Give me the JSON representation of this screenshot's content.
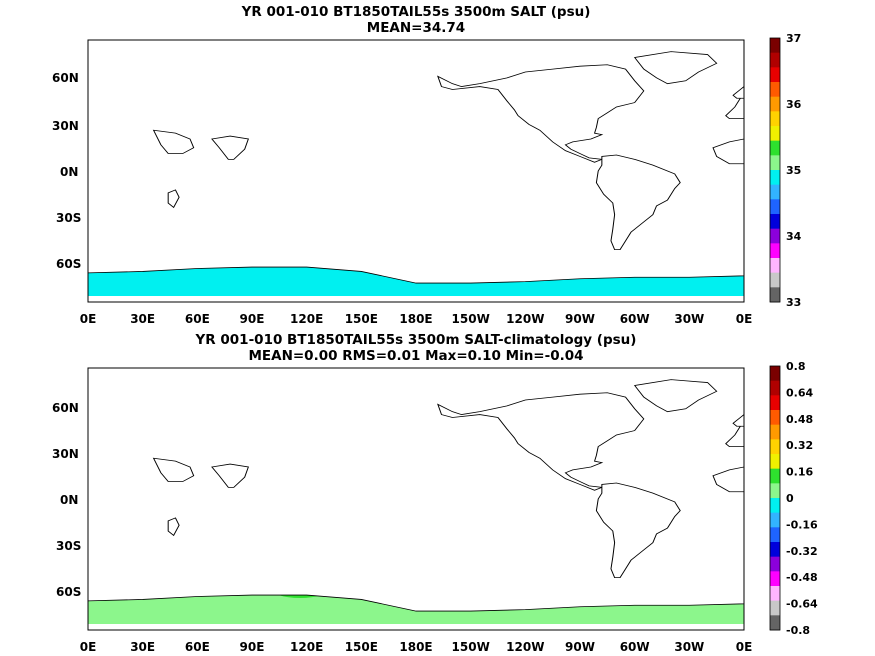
{
  "panels": [
    {
      "title_line1": "YR 001-010 BT1850TAIL55s 3500m SALT (psu)",
      "title_line2": "MEAN=34.74",
      "colorbar_labels": [
        "37",
        "36",
        "35",
        "34",
        "33"
      ],
      "colorbar_colors": [
        "#7a0000",
        "#b00000",
        "#e80000",
        "#ff5a00",
        "#ff9a00",
        "#ffd200",
        "#f0f000",
        "#2ee02e",
        "#8cf68c",
        "#00f0f0",
        "#32b4ff",
        "#1e64ff",
        "#0000dc",
        "#8c00dc",
        "#ff00ff",
        "#ffb4ff",
        "#c8c8c8",
        "#646464"
      ],
      "fill_main": "#00f0f0",
      "fill_atlantic": "#8cf68c"
    },
    {
      "title_line1": "YR 001-010 BT1850TAIL55s 3500m SALT-climatology (psu)",
      "title_line2": "MEAN=0.00   RMS=0.01   Max=0.10   Min=-0.04",
      "colorbar_labels": [
        "0.8",
        "0.64",
        "0.48",
        "0.32",
        "0.16",
        "0",
        "-0.16",
        "-0.32",
        "-0.48",
        "-0.64",
        "-0.8"
      ],
      "colorbar_colors": [
        "#7a0000",
        "#b00000",
        "#e80000",
        "#ff5a00",
        "#ff9a00",
        "#ffd200",
        "#f0f000",
        "#2ee02e",
        "#8cf68c",
        "#00f0f0",
        "#32b4ff",
        "#1e64ff",
        "#0000dc",
        "#8c00dc",
        "#ff00ff",
        "#ffb4ff",
        "#c8c8c8",
        "#646464"
      ],
      "fill_main": "#8cf68c",
      "fill_patch": "#2ee02e"
    }
  ],
  "x_tick_labels": [
    "0E",
    "30E",
    "60E",
    "90E",
    "120E",
    "150E",
    "180E",
    "150W",
    "120W",
    "90W",
    "60W",
    "30W",
    "0E"
  ],
  "y_tick_labels": [
    "60N",
    "30N",
    "0N",
    "30S",
    "60S"
  ]
}
